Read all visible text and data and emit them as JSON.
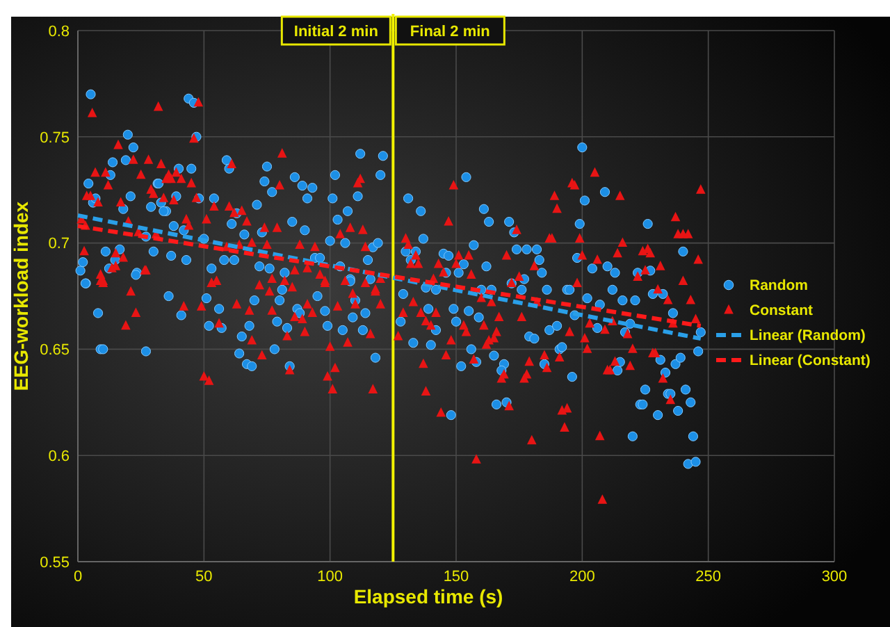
{
  "chart_data": {
    "type": "scatter",
    "xlabel": "Elapsed time (s)",
    "ylabel": "EEG-workload index",
    "xlim": [
      0,
      300
    ],
    "xticks": [
      0,
      50,
      100,
      150,
      200,
      250,
      300
    ],
    "ylim": [
      0.55,
      0.8
    ],
    "yticks": [
      0.55,
      0.6,
      0.65,
      0.7,
      0.75,
      0.8
    ],
    "grid": true,
    "legend": "right",
    "ref_lines": [
      {
        "axis": "x",
        "value": 125,
        "color": "#f2f200"
      }
    ],
    "annotations": [
      "Initial 2 min",
      "Final 2 min"
    ],
    "series": [
      {
        "name": "Random",
        "marker": "circle",
        "color": "#1c8fe6",
        "x": [
          5.1,
          19.8,
          22,
          19,
          13.8,
          12.9,
          4.2,
          6,
          7,
          20.9,
          18,
          29,
          33,
          35,
          34,
          31.6,
          32,
          39,
          40,
          45,
          43.9,
          46,
          47,
          48,
          38,
          42,
          37,
          43,
          23.4,
          16.6,
          14.8,
          11,
          12.4,
          3.2,
          1,
          2,
          27,
          30,
          50,
          54,
          53,
          58,
          62,
          59,
          60,
          61,
          63,
          66,
          71,
          73,
          72,
          76,
          74,
          75,
          77,
          85,
          86,
          89,
          91,
          93,
          90,
          82,
          94,
          96,
          100,
          101,
          102,
          103,
          106,
          107,
          104,
          108,
          111,
          112,
          115,
          117,
          119,
          120,
          121,
          3,
          8,
          9,
          10,
          27,
          23,
          36,
          41,
          51,
          52,
          56,
          57,
          64,
          65,
          67,
          69,
          68,
          70,
          78,
          79,
          80,
          81,
          83,
          84,
          87,
          88,
          95,
          98,
          99,
          105,
          108,
          109,
          114,
          113,
          118,
          116,
          110,
          200,
          154,
          131,
          136,
          209,
          201,
          161,
          163,
          171,
          173,
          199,
          226,
          137,
          157,
          174,
          178,
          182,
          145,
          147,
          183,
          198,
          240,
          130,
          134,
          132,
          153,
          162,
          204,
          210,
          213,
          227,
          222,
          146,
          151,
          184,
          177,
          172,
          176,
          186,
          160,
          164,
          194,
          195,
          212,
          138,
          142,
          216,
          221,
          228,
          232,
          202,
          207,
          129,
          128,
          133,
          140,
          142,
          139,
          149,
          150,
          159,
          155,
          152,
          156,
          158,
          165,
          169,
          168,
          166,
          170,
          148,
          179,
          181,
          187,
          190,
          191,
          192,
          185,
          196,
          197,
          206,
          214,
          215,
          219,
          217,
          220,
          225,
          223,
          224,
          230,
          231,
          233,
          234,
          235,
          237,
          239,
          238,
          241,
          243,
          244,
          242,
          245,
          246,
          247,
          236
        ],
        "values": [
          0.77,
          0.751,
          0.745,
          0.739,
          0.738,
          0.732,
          0.728,
          0.719,
          0.721,
          0.722,
          0.716,
          0.717,
          0.719,
          0.715,
          0.715,
          0.728,
          0.728,
          0.722,
          0.735,
          0.735,
          0.768,
          0.766,
          0.75,
          0.721,
          0.708,
          0.706,
          0.694,
          0.692,
          0.686,
          0.697,
          0.692,
          0.696,
          0.688,
          0.681,
          0.687,
          0.691,
          0.703,
          0.696,
          0.702,
          0.721,
          0.688,
          0.692,
          0.692,
          0.739,
          0.735,
          0.709,
          0.714,
          0.704,
          0.718,
          0.705,
          0.689,
          0.688,
          0.729,
          0.736,
          0.724,
          0.71,
          0.731,
          0.727,
          0.721,
          0.726,
          0.706,
          0.686,
          0.693,
          0.693,
          0.701,
          0.721,
          0.732,
          0.711,
          0.7,
          0.715,
          0.689,
          0.683,
          0.722,
          0.742,
          0.692,
          0.698,
          0.7,
          0.732,
          0.741,
          0.681,
          0.667,
          0.65,
          0.65,
          0.649,
          0.685,
          0.675,
          0.666,
          0.674,
          0.661,
          0.669,
          0.66,
          0.648,
          0.656,
          0.643,
          0.642,
          0.661,
          0.673,
          0.65,
          0.663,
          0.673,
          0.678,
          0.66,
          0.642,
          0.669,
          0.667,
          0.675,
          0.668,
          0.661,
          0.659,
          0.682,
          0.665,
          0.667,
          0.659,
          0.646,
          0.683,
          0.673,
          0.745,
          0.731,
          0.721,
          0.715,
          0.724,
          0.72,
          0.716,
          0.71,
          0.71,
          0.705,
          0.709,
          0.709,
          0.702,
          0.699,
          0.697,
          0.697,
          0.697,
          0.695,
          0.694,
          0.692,
          0.693,
          0.696,
          0.696,
          0.696,
          0.692,
          0.69,
          0.689,
          0.688,
          0.689,
          0.686,
          0.687,
          0.686,
          0.686,
          0.686,
          0.686,
          0.683,
          0.681,
          0.678,
          0.678,
          0.678,
          0.678,
          0.678,
          0.678,
          0.678,
          0.679,
          0.678,
          0.673,
          0.673,
          0.676,
          0.676,
          0.674,
          0.671,
          0.676,
          0.663,
          0.653,
          0.652,
          0.659,
          0.669,
          0.669,
          0.663,
          0.665,
          0.668,
          0.642,
          0.65,
          0.644,
          0.647,
          0.643,
          0.64,
          0.624,
          0.625,
          0.619,
          0.656,
          0.655,
          0.659,
          0.661,
          0.65,
          0.651,
          0.643,
          0.637,
          0.666,
          0.66,
          0.64,
          0.644,
          0.662,
          0.658,
          0.609,
          0.631,
          0.624,
          0.624,
          0.619,
          0.645,
          0.639,
          0.629,
          0.629,
          0.643,
          0.646,
          0.621,
          0.631,
          0.625,
          0.609,
          0.596,
          0.597,
          0.649,
          0.658,
          0.667
        ]
      },
      {
        "name": "Constant",
        "marker": "triangle",
        "color": "#e81414",
        "x": [
          5.7,
          31.9,
          47.8,
          46,
          16,
          6.9,
          11,
          12,
          22,
          28,
          25,
          33,
          36,
          35,
          37,
          39,
          41,
          45,
          29,
          30,
          34,
          38,
          47,
          3.5,
          5,
          8,
          17,
          20,
          24,
          31,
          1.4,
          3,
          2.5,
          15,
          18,
          15,
          13.5,
          9,
          10,
          26.5,
          43,
          44,
          51,
          54,
          61,
          60,
          62,
          65,
          67,
          59,
          64,
          69,
          74,
          79,
          75,
          81,
          80,
          88,
          94,
          96,
          98,
          104,
          108,
          113,
          112,
          111,
          114,
          114,
          118,
          53,
          55,
          77,
          86,
          91,
          106,
          120,
          21,
          23,
          19,
          9,
          10,
          27,
          42,
          49,
          50,
          52,
          53,
          55,
          56,
          63,
          68,
          69,
          72,
          73,
          76,
          77,
          82,
          83,
          84,
          85,
          86,
          89,
          90,
          91,
          93,
          98,
          99,
          100,
          101,
          102,
          103,
          107,
          109,
          110,
          116,
          117,
          118,
          120,
          247,
          205,
          196,
          197,
          149,
          189,
          190,
          215,
          147,
          237,
          238,
          240,
          242,
          130,
          131,
          174,
          187,
          188,
          199,
          216,
          200,
          206,
          214,
          224,
          226,
          227,
          246,
          132,
          135,
          134,
          143,
          151,
          155,
          150,
          170,
          181,
          225,
          231,
          222,
          240,
          141,
          145,
          156,
          175,
          172,
          198,
          230,
          234,
          243,
          133,
          160,
          164,
          182,
          129,
          127,
          136,
          142,
          138,
          140,
          148,
          153,
          154,
          137,
          138,
          146,
          144,
          161,
          163,
          162,
          165,
          166,
          167,
          157,
          168,
          169,
          171,
          176,
          179,
          178,
          177,
          185,
          186,
          180,
          158,
          191,
          195,
          192,
          194,
          193,
          201,
          202,
          203,
          209,
          213,
          210,
          211,
          207,
          208,
          219,
          220,
          218,
          228,
          229,
          232,
          235,
          236,
          245,
          212
        ],
        "values": [
          0.761,
          0.764,
          0.766,
          0.749,
          0.746,
          0.733,
          0.733,
          0.727,
          0.739,
          0.739,
          0.732,
          0.737,
          0.732,
          0.73,
          0.73,
          0.733,
          0.73,
          0.728,
          0.725,
          0.723,
          0.721,
          0.72,
          0.721,
          0.722,
          0.722,
          0.719,
          0.719,
          0.71,
          0.705,
          0.704,
          0.711,
          0.708,
          0.696,
          0.695,
          0.693,
          0.689,
          0.688,
          0.685,
          0.682,
          0.687,
          0.711,
          0.708,
          0.711,
          0.717,
          0.737,
          0.717,
          0.714,
          0.715,
          0.71,
          0.698,
          0.699,
          0.7,
          0.707,
          0.707,
          0.699,
          0.742,
          0.727,
          0.699,
          0.698,
          0.685,
          0.682,
          0.704,
          0.707,
          0.706,
          0.73,
          0.728,
          0.698,
          0.681,
          0.677,
          0.681,
          0.682,
          0.683,
          0.687,
          0.688,
          0.682,
          0.683,
          0.677,
          0.667,
          0.661,
          0.682,
          0.681,
          0.687,
          0.67,
          0.67,
          0.637,
          0.635,
          0.681,
          0.682,
          0.662,
          0.671,
          0.668,
          0.654,
          0.68,
          0.647,
          0.677,
          0.668,
          0.682,
          0.656,
          0.64,
          0.679,
          0.665,
          0.664,
          0.658,
          0.671,
          0.667,
          0.681,
          0.637,
          0.651,
          0.631,
          0.641,
          0.67,
          0.653,
          0.676,
          0.671,
          0.657,
          0.631,
          0.678,
          0.671,
          0.725,
          0.733,
          0.728,
          0.727,
          0.727,
          0.722,
          0.716,
          0.722,
          0.71,
          0.712,
          0.704,
          0.704,
          0.704,
          0.702,
          0.699,
          0.706,
          0.702,
          0.702,
          0.702,
          0.7,
          0.694,
          0.692,
          0.695,
          0.696,
          0.697,
          0.695,
          0.692,
          0.69,
          0.69,
          0.694,
          0.69,
          0.694,
          0.694,
          0.69,
          0.694,
          0.689,
          0.687,
          0.689,
          0.684,
          0.682,
          0.683,
          0.686,
          0.685,
          0.684,
          0.681,
          0.681,
          0.678,
          0.673,
          0.673,
          0.672,
          0.674,
          0.672,
          0.672,
          0.667,
          0.656,
          0.667,
          0.667,
          0.663,
          0.661,
          0.654,
          0.661,
          0.658,
          0.643,
          0.63,
          0.647,
          0.62,
          0.661,
          0.654,
          0.652,
          0.655,
          0.658,
          0.665,
          0.645,
          0.636,
          0.638,
          0.623,
          0.665,
          0.644,
          0.638,
          0.636,
          0.647,
          0.641,
          0.607,
          0.598,
          0.646,
          0.658,
          0.621,
          0.622,
          0.613,
          0.655,
          0.65,
          0.662,
          0.659,
          0.644,
          0.64,
          0.64,
          0.609,
          0.579,
          0.642,
          0.65,
          0.657,
          0.648,
          0.648,
          0.636,
          0.626,
          0.662,
          0.664,
          0.663
        ]
      },
      {
        "name": "Linear (Random)",
        "type": "line",
        "line_style": "dashed",
        "color": "#2a9fe8",
        "x": [
          0,
          247
        ],
        "values": [
          0.713,
          0.655
        ]
      },
      {
        "name": "Linear (Constant)",
        "type": "line",
        "line_style": "dashed",
        "color": "#ff1a1a",
        "x": [
          0,
          247
        ],
        "values": [
          0.708,
          0.661
        ]
      }
    ]
  }
}
